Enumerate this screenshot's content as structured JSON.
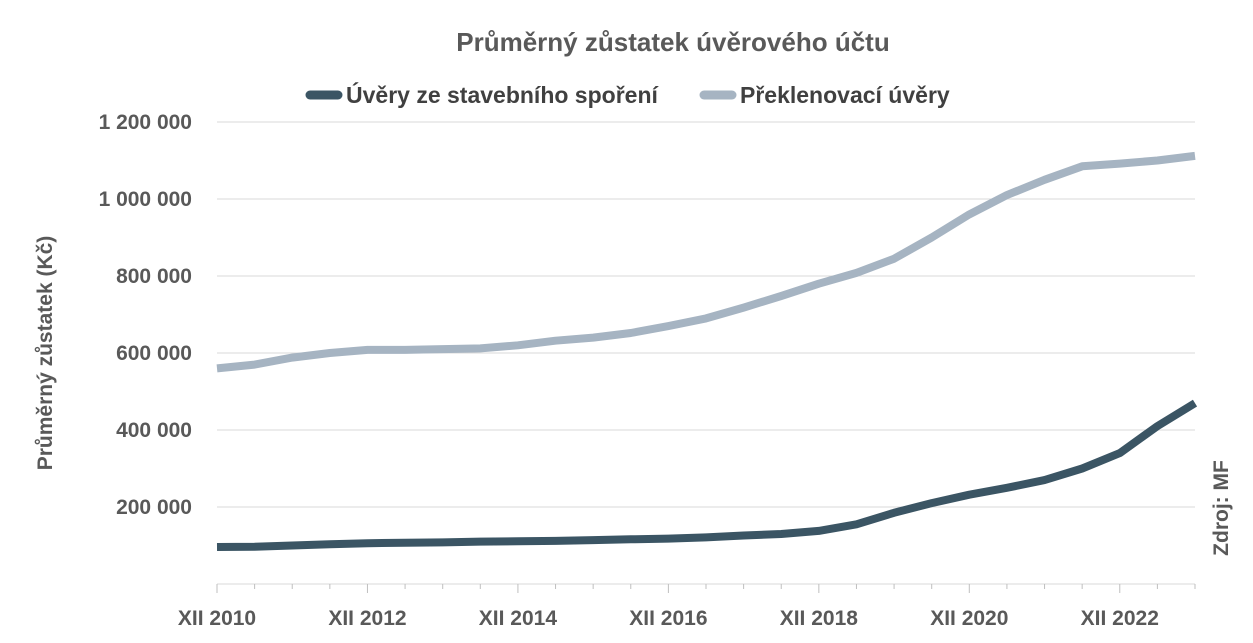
{
  "chart_data": {
    "type": "line",
    "title": "Průměrný zůstatek úvěrového účtu",
    "ylabel": "Průměrný zůstatek (Kč)",
    "xlabel": "",
    "source": "Zdroj: MF",
    "ylim": [
      0,
      1200000
    ],
    "y_ticks": [
      200000,
      400000,
      600000,
      800000,
      1000000,
      1200000
    ],
    "y_tick_labels": [
      "200 000",
      "400 000",
      "600 000",
      "800 000",
      "1 000 000",
      "1 200 000"
    ],
    "grid": true,
    "legend_position": "top-center",
    "x_labels": [
      "XII 2010",
      "XII 2012",
      "XII 2014",
      "XII 2016",
      "XII 2018",
      "XII 2020",
      "XII 2022"
    ],
    "x": [
      "XII 2010",
      "VI 2011",
      "XII 2011",
      "VI 2012",
      "XII 2012",
      "VI 2013",
      "XII 2013",
      "VI 2014",
      "XII 2014",
      "VI 2015",
      "XII 2015",
      "VI 2016",
      "XII 2016",
      "VI 2017",
      "XII 2017",
      "VI 2018",
      "XII 2018",
      "VI 2019",
      "XII 2019",
      "VI 2020",
      "XII 2020",
      "VI 2021",
      "XII 2021",
      "VI 2022",
      "XII 2022",
      "VI 2023",
      "XII 2023"
    ],
    "series": [
      {
        "name": "Úvěry ze stavebního spoření",
        "color": "#3b5564",
        "values": [
          96000,
          97000,
          100000,
          103000,
          106000,
          107000,
          108000,
          110000,
          111000,
          112000,
          114000,
          116000,
          118000,
          121000,
          126000,
          130000,
          138000,
          155000,
          185000,
          210000,
          232000,
          250000,
          270000,
          300000,
          340000,
          410000,
          470000
        ]
      },
      {
        "name": "Překlenovací úvěry",
        "color": "#a6b4c2",
        "values": [
          560000,
          570000,
          588000,
          600000,
          608000,
          608000,
          610000,
          612000,
          620000,
          632000,
          640000,
          652000,
          670000,
          690000,
          718000,
          748000,
          780000,
          808000,
          845000,
          900000,
          960000,
          1010000,
          1050000,
          1085000,
          1092000,
          1100000,
          1112000
        ]
      }
    ]
  }
}
